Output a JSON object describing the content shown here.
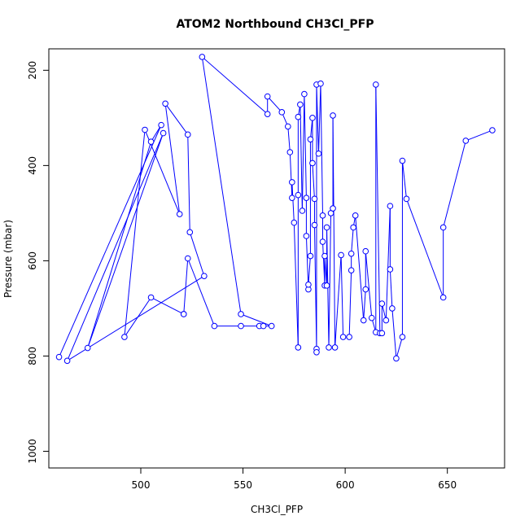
{
  "chart_data": {
    "type": "line",
    "title": "ATOM2 Northbound CH3Cl_PFP",
    "xlabel": "CH3Cl_PFP",
    "ylabel": "Pressure (mbar)",
    "xlim": [
      455,
      678
    ],
    "ylim": [
      1035,
      155
    ],
    "y_reversed": true,
    "x_ticks": [
      500,
      550,
      600,
      650
    ],
    "y_ticks": [
      200,
      400,
      600,
      800,
      1000
    ],
    "series_color": "#0000ff",
    "marker": "open-circle",
    "grid": false,
    "series": [
      {
        "points": [
          [
            460,
            802
          ],
          [
            510,
            315
          ],
          [
            505,
            350
          ],
          [
            474,
            783
          ],
          [
            511,
            332
          ],
          [
            464,
            810
          ],
          [
            531,
            632
          ],
          [
            524,
            540
          ],
          [
            523,
            335
          ],
          [
            512,
            270
          ],
          [
            519,
            502
          ],
          [
            502,
            325
          ],
          [
            492,
            760
          ],
          [
            505,
            677
          ],
          [
            521,
            712
          ],
          [
            521,
            712
          ],
          [
            523,
            595
          ],
          [
            536,
            737
          ],
          [
            549,
            737
          ],
          [
            558,
            737
          ],
          [
            560,
            737
          ],
          [
            564,
            737
          ],
          [
            549,
            712
          ],
          [
            530,
            172
          ],
          [
            562,
            292
          ],
          [
            562,
            255
          ],
          [
            569,
            288
          ],
          [
            572,
            318
          ],
          [
            573,
            372
          ],
          [
            574,
            468
          ],
          [
            574,
            435
          ],
          [
            575,
            520
          ],
          [
            577,
            782
          ],
          [
            577,
            462
          ],
          [
            577,
            298
          ],
          [
            578,
            272
          ],
          [
            579,
            495
          ],
          [
            580,
            250
          ],
          [
            581,
            468
          ],
          [
            581,
            548
          ],
          [
            582,
            660
          ],
          [
            582,
            650
          ],
          [
            583,
            590
          ],
          [
            583,
            345
          ],
          [
            584,
            300
          ],
          [
            584,
            395
          ],
          [
            585,
            470
          ],
          [
            585,
            525
          ],
          [
            586,
            785
          ],
          [
            586,
            792
          ],
          [
            586,
            230
          ],
          [
            587,
            375
          ],
          [
            588,
            228
          ],
          [
            589,
            505
          ],
          [
            589,
            560
          ],
          [
            590,
            652
          ],
          [
            590,
            590
          ],
          [
            591,
            652
          ],
          [
            591,
            530
          ],
          [
            592,
            782
          ],
          [
            593,
            500
          ],
          [
            594,
            490
          ],
          [
            594,
            295
          ],
          [
            595,
            782
          ],
          [
            598,
            588
          ],
          [
            599,
            760
          ],
          [
            602,
            760
          ],
          [
            603,
            620
          ],
          [
            603,
            585
          ],
          [
            604,
            530
          ],
          [
            605,
            505
          ],
          [
            609,
            725
          ],
          [
            610,
            660
          ],
          [
            610,
            580
          ],
          [
            613,
            720
          ],
          [
            615,
            750
          ],
          [
            615,
            230
          ],
          [
            617,
            752
          ],
          [
            618,
            752
          ],
          [
            618,
            690
          ],
          [
            620,
            725
          ],
          [
            622,
            485
          ],
          [
            622,
            618
          ],
          [
            623,
            700
          ],
          [
            625,
            805
          ],
          [
            628,
            760
          ],
          [
            628,
            390
          ],
          [
            630,
            470
          ],
          [
            648,
            677
          ],
          [
            648,
            530
          ],
          [
            659,
            348
          ],
          [
            672,
            326
          ]
        ]
      }
    ]
  }
}
